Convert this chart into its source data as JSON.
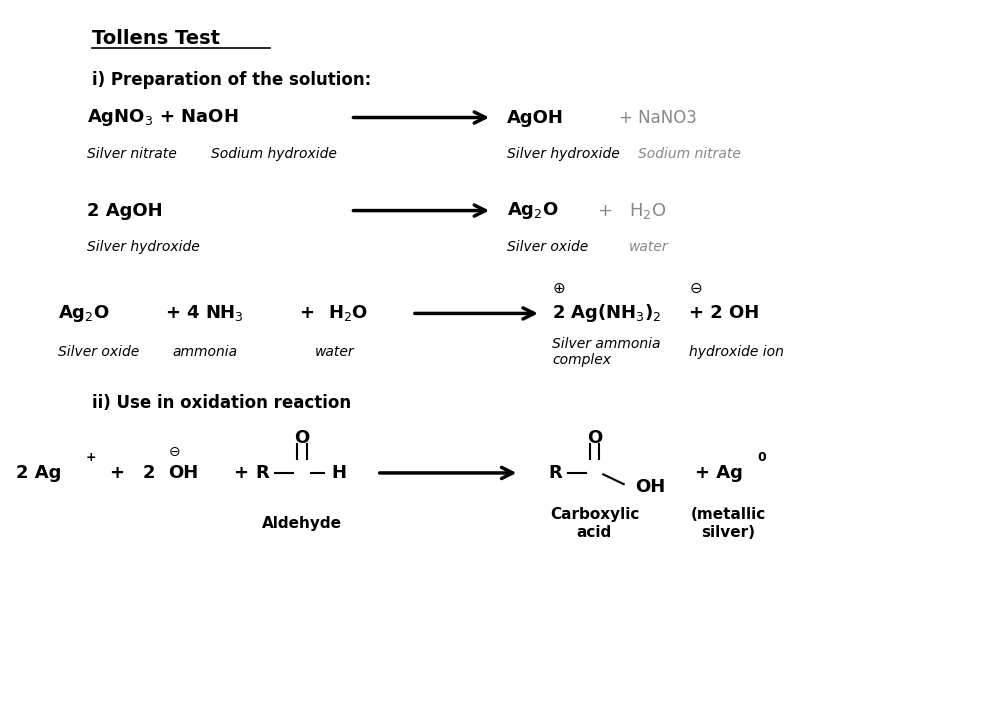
{
  "title": "Tollens Test",
  "bg_color": "#ffffff",
  "text_color": "#000000",
  "gray_color": "#888888",
  "fig_width": 9.84,
  "fig_height": 7.08,
  "dpi": 100,
  "section1_label": "i) Preparation of the solution:",
  "section2_label": "ii) Use in oxidation reaction",
  "rxn3_n4": "Silver ammonia\ncomplex",
  "rxn3_n5": "hydroxide ion",
  "rxn4_p2": "(metallic\nsilver)",
  "rxn4_n1": "Aldehyde",
  "rxn4_n2": "Carboxylic\nacid"
}
